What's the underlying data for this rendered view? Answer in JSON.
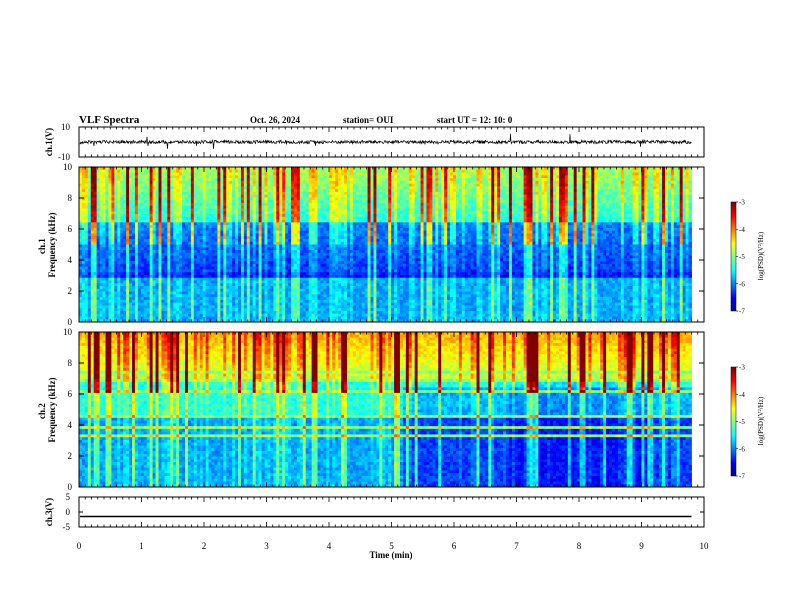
{
  "header": {
    "title": "VLF Spectra",
    "date": "Oct. 26, 2024",
    "station": "station= OUI",
    "start": "start  UT  =   12: 10: 0"
  },
  "colors": {
    "background": "#ffffff",
    "axes": "#000000",
    "colormap": [
      "#00008f",
      "#0000ff",
      "#00ffff",
      "#ffff00",
      "#ff0000",
      "#800000"
    ]
  },
  "chart_data": [
    {
      "type": "line",
      "panel": "ch1-waveform",
      "ylabel": "ch.1(V)",
      "ylim": [
        -10,
        10
      ],
      "yticks": [
        "10",
        "-10"
      ],
      "x_range_min": [
        0,
        10
      ],
      "trace": "noise around 0 V, amplitude about ±1 V with occasional spikes",
      "color": "#000000"
    },
    {
      "type": "heatmap",
      "panel": "ch1-spectrogram",
      "ylabel": "ch.1\nFrequency (kHz)",
      "ylim": [
        0,
        10
      ],
      "yticks": [
        "0",
        "2",
        "4",
        "6",
        "8",
        "10"
      ],
      "x_range_min": [
        0,
        9.8
      ],
      "colorbar": {
        "label": "log(PSD)(V²/Hz)",
        "range": [
          -7,
          -3
        ],
        "ticks": [
          "-3",
          "-4",
          "-5",
          "-6",
          "-7"
        ]
      },
      "features": [
        "broadband sferic impulses (green–yellow) throughout",
        "low-intensity (blue) band about 2.5–6 kHz",
        "horizontal narrowband lines below 3.5 kHz",
        "higher intensity (green) above 6 kHz"
      ]
    },
    {
      "type": "heatmap",
      "panel": "ch2-spectrogram",
      "ylabel": "ch.2\nFrequency (kHz)",
      "ylim": [
        0,
        10
      ],
      "yticks": [
        "0",
        "2",
        "4",
        "6",
        "8",
        "10"
      ],
      "x_range_min": [
        0,
        9.8
      ],
      "colorbar": {
        "label": "log(PSD)(V²/Hz)",
        "range": [
          -7,
          -3
        ],
        "ticks": [
          "-3",
          "-4",
          "-5",
          "-6",
          "-7"
        ]
      },
      "features": [
        "strong (yellow–red) sferics above 7 kHz",
        "darker blue region after about 5.2 min",
        "horizontal narrowband lines near 2.5 kHz"
      ]
    },
    {
      "type": "line",
      "panel": "ch3-waveform",
      "ylabel": "ch.3(V)",
      "ylim": [
        -5,
        5
      ],
      "yticks": [
        "5",
        "0",
        "-5"
      ],
      "x_range_min": [
        0,
        9.8
      ],
      "trace": "flat line at about -1.5 V",
      "color": "#000000"
    }
  ],
  "xaxis": {
    "label": "Time  (min)",
    "ticks": [
      "0",
      "1",
      "2",
      "3",
      "4",
      "5",
      "6",
      "7",
      "8",
      "9",
      "10"
    ],
    "range": [
      0,
      10
    ]
  }
}
